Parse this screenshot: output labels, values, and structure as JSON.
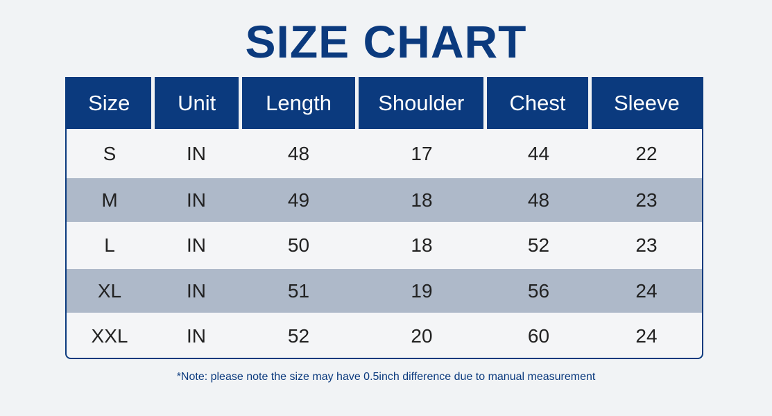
{
  "title": "SIZE CHART",
  "headers": [
    "Size",
    "Unit",
    "Length",
    "Shoulder",
    "Chest",
    "Sleeve"
  ],
  "rows": [
    [
      "S",
      "IN",
      "48",
      "17",
      "44",
      "22"
    ],
    [
      "M",
      "IN",
      "49",
      "18",
      "48",
      "23"
    ],
    [
      "L",
      "IN",
      "50",
      "18",
      "52",
      "23"
    ],
    [
      "XL",
      "IN",
      "51",
      "19",
      "56",
      "24"
    ],
    [
      "XXL",
      "IN",
      "52",
      "20",
      "60",
      "24"
    ]
  ],
  "note": "*Note: please note the size may have 0.5inch difference due to manual measurement",
  "colors": {
    "header": "#0b3a7e",
    "alt_row": "#aeb9c9"
  }
}
